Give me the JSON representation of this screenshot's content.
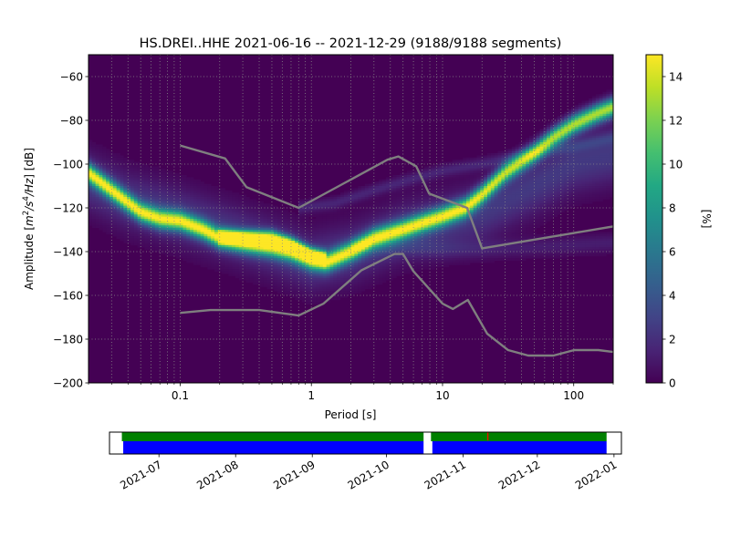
{
  "chart_data": [
    {
      "type": "heatmap",
      "title": "HS.DREI..HHE   2021-06-16 -- 2021-12-29  (9188/9188 segments)",
      "xlabel": "Period [s]",
      "ylabel_parts": [
        "Amplitude [",
        "m",
        "2",
        "/",
        "s",
        "4",
        "/",
        "Hz",
        "] [dB]"
      ],
      "x_scale": "log",
      "xlim": [
        0.02,
        200
      ],
      "ylim": [
        -200,
        -50
      ],
      "x_ticks": [
        0.1,
        1,
        10,
        100
      ],
      "x_tick_labels": [
        "0.1",
        "1",
        "10",
        "100"
      ],
      "y_ticks": [
        -200,
        -180,
        -160,
        -140,
        -120,
        -100,
        -80,
        -60
      ],
      "y_tick_labels": [
        "−200",
        "−180",
        "−160",
        "−140",
        "−120",
        "−100",
        "−80",
        "−60"
      ],
      "grid": true,
      "colormap": "viridis",
      "colorbar": {
        "label": "[%]",
        "range": [
          0,
          15
        ],
        "ticks": [
          0,
          2,
          4,
          6,
          8,
          10,
          12,
          14
        ],
        "tick_labels": [
          "0",
          "2",
          "4",
          "6",
          "8",
          "10",
          "12",
          "14"
        ]
      },
      "density_bands": [
        {
          "period": [
            0.02,
            0.03,
            0.05,
            0.07,
            0.1,
            0.15,
            0.2,
            0.3,
            0.5,
            0.7,
            1,
            1.3,
            2,
            3,
            5,
            7,
            10,
            15,
            20,
            30,
            50,
            70,
            100,
            150,
            200
          ],
          "db": [
            -104,
            -112,
            -122,
            -125,
            -126,
            -130,
            -134,
            -136,
            -138,
            -140,
            -144,
            -145,
            -140,
            -134,
            -130,
            -127,
            -124,
            -120,
            -114,
            -104,
            -95,
            -88,
            -82,
            -77,
            -74
          ],
          "peak_percent": 13,
          "width_db": 3
        },
        {
          "period": [
            0.2,
            0.3,
            0.5,
            0.7,
            1,
            1.3
          ],
          "db": [
            -133,
            -133,
            -133,
            -136,
            -141,
            -143
          ],
          "peak_percent": 10,
          "width_db": 2
        },
        {
          "period": [
            0.02,
            0.04,
            0.06,
            0.1,
            0.2,
            0.5,
            1,
            2,
            5,
            10,
            20,
            50,
            100,
            200
          ],
          "db": [
            -108,
            -117,
            -120,
            -124,
            -130,
            -138,
            -145,
            -141,
            -131,
            -127,
            -122,
            -110,
            -100,
            -96
          ],
          "peak_percent": 2.5,
          "width_db": 9
        },
        {
          "period": [
            0.8,
            1.5,
            3,
            5,
            10,
            20,
            50,
            100,
            200
          ],
          "db": [
            -120,
            -118,
            -112,
            -108,
            -103,
            -100,
            -95,
            -92,
            -88
          ],
          "peak_percent": 1.5,
          "width_db": 2
        },
        {
          "period": [
            2,
            5,
            10,
            20,
            50,
            100,
            200
          ],
          "db": [
            -138,
            -138,
            -139,
            -139,
            -138,
            -137,
            -136
          ],
          "peak_percent": 1.2,
          "width_db": 3
        }
      ],
      "noise_models": {
        "high": {
          "period": [
            0.1,
            0.22,
            0.32,
            0.8,
            3.8,
            4.6,
            6.3,
            7.9,
            15.4,
            20,
            354.8
          ],
          "db": [
            -91.5,
            -97.4,
            -110.5,
            -120,
            -98,
            -96.5,
            -101,
            -113.5,
            -120,
            -138.5,
            -126
          ]
        },
        "low": {
          "period": [
            0.1,
            0.17,
            0.4,
            0.8,
            1.24,
            2.4,
            4.3,
            5,
            6,
            10,
            12,
            15.6,
            21.9,
            31.6,
            45,
            70,
            101,
            154,
            328
          ],
          "db": [
            -168,
            -166.7,
            -166.7,
            -169.2,
            -163.7,
            -148.6,
            -141.1,
            -141.1,
            -149,
            -163.8,
            -166.2,
            -162.1,
            -177.5,
            -185,
            -187.5,
            -187.5,
            -185,
            -185,
            -187.5
          ]
        }
      }
    },
    {
      "type": "timeline",
      "x_tick_labels": [
        "2021-07",
        "2021-08",
        "2021-09",
        "2021-10",
        "2021-11",
        "2021-12",
        "2022-01"
      ],
      "x_tick_dates": [
        "2021-07-01",
        "2021-08-01",
        "2021-09-01",
        "2021-10-01",
        "2021-11-01",
        "2021-12-01",
        "2022-01-01"
      ],
      "xlim": [
        "2021-06-11",
        "2022-01-04"
      ],
      "data_coverage": [
        [
          "2021-06-16",
          "2021-10-16"
        ],
        [
          "2021-10-19",
          "2021-12-29"
        ]
      ],
      "psd_segments_used": [
        [
          "2021-06-16",
          "2021-10-16"
        ],
        [
          "2021-10-19",
          "2021-12-29"
        ]
      ],
      "gap_markers": [
        "2021-11-11"
      ],
      "colors": {
        "coverage": "#0000ff",
        "segments": "#008000",
        "gaps": "#ff0000"
      }
    }
  ],
  "colors": {
    "background": "#440154",
    "noise_model": "#7f7f7f",
    "grid": "#888888"
  }
}
